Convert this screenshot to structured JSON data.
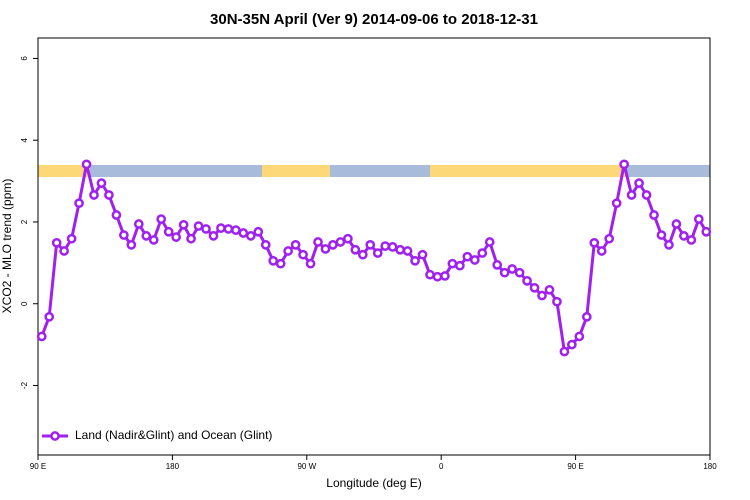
{
  "chart_data": {
    "type": "line",
    "title": "30N-35N April (Ver 9)   2014-09-06 to 2018-12-31",
    "xlabel": "Longitude (deg E)",
    "ylabel": "XCO2 - MLO trend (ppm)",
    "xlim": [
      90,
      540
    ],
    "xticks": [
      {
        "value": 90,
        "label": "90 E"
      },
      {
        "value": 180,
        "label": "180"
      },
      {
        "value": 270,
        "label": "90 W"
      },
      {
        "value": 360,
        "label": "0"
      },
      {
        "value": 450,
        "label": "90 E"
      },
      {
        "value": 540,
        "label": "180"
      }
    ],
    "ylim": [
      -3.7,
      6.5
    ],
    "yticks": [
      -2,
      0,
      2,
      4,
      6
    ],
    "legend": "bottom-left",
    "x": [
      92.5,
      97.5,
      102.5,
      107.5,
      112.5,
      117.5,
      122.5,
      127.5,
      132.5,
      137.5,
      142.5,
      147.5,
      152.5,
      157.5,
      162.5,
      167.5,
      172.5,
      177.5,
      182.5,
      187.5,
      192.5,
      197.5,
      202.5,
      207.5,
      212.5,
      217.5,
      222.5,
      227.5,
      232.5,
      237.5,
      242.5,
      247.5,
      252.5,
      257.5,
      262.5,
      267.5,
      272.5,
      277.5,
      282.5,
      287.5,
      292.5,
      297.5,
      302.5,
      307.5,
      312.5,
      317.5,
      322.5,
      327.5,
      332.5,
      337.5,
      342.5,
      347.5,
      352.5,
      357.5,
      362.5,
      367.5,
      372.5,
      377.5,
      382.5,
      387.5,
      392.5,
      397.5,
      402.5,
      407.5,
      412.5,
      417.5,
      422.5,
      427.5,
      432.5,
      437.5,
      442.5,
      447.5,
      452.5,
      457.5,
      462.5,
      467.5,
      472.5,
      477.5,
      482.5,
      487.5,
      492.5,
      497.5,
      502.5,
      507.5,
      512.5,
      517.5,
      522.5,
      527.5,
      532.5,
      537.5
    ],
    "series": [
      {
        "name": "Land (Nadir&Glint) and Ocean (Glint)",
        "color": "#a020f0",
        "values": [
          -0.8,
          -0.32,
          1.49,
          1.29,
          1.59,
          2.46,
          3.41,
          2.66,
          2.95,
          2.66,
          2.17,
          1.68,
          1.44,
          1.95,
          1.66,
          1.56,
          2.07,
          1.76,
          1.63,
          1.93,
          1.59,
          1.9,
          1.83,
          1.66,
          1.85,
          1.83,
          1.8,
          1.73,
          1.66,
          1.76,
          1.44,
          1.05,
          0.98,
          1.29,
          1.44,
          1.2,
          0.98,
          1.51,
          1.34,
          1.44,
          1.51,
          1.59,
          1.32,
          1.2,
          1.44,
          1.24,
          1.41,
          1.39,
          1.32,
          1.29,
          1.05,
          1.2,
          0.71,
          0.66,
          0.68,
          0.98,
          0.93,
          1.15,
          1.07,
          1.24,
          1.51,
          0.95,
          0.76,
          0.85,
          0.76,
          0.56,
          0.39,
          0.2,
          0.34,
          0.05,
          -1.17,
          -1.0,
          -0.8,
          -0.32,
          1.49,
          1.29,
          1.59,
          2.46,
          3.41,
          2.66,
          2.95,
          2.66,
          2.17,
          1.68,
          1.44,
          1.95,
          1.66,
          1.56,
          2.07,
          1.76
        ]
      }
    ]
  }
}
